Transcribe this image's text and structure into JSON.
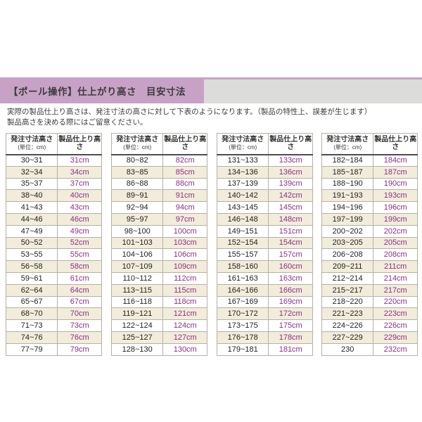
{
  "page": {
    "title": "【ポール操作】仕上がり高さ　目安寸法",
    "note_line1": "実際の製品仕上り高さは、発注寸法の高さに対して下表のようになります。（製品の特性上、誤差が生じます）",
    "note_line2": "製品高さを決める際にはご留意ください。"
  },
  "table_header": {
    "order_height_label": "発注寸法高さ",
    "order_height_unit": "(単位：cm)",
    "product_height_label": "製品仕上り高さ"
  },
  "colors": {
    "title_bar_pink": "#c8a2c6",
    "title_bar_gray": "#dcdcda",
    "row_alt_cream": "#f2ecda",
    "cell_border": "#b5b1a7",
    "value_purple": "#8c2f88"
  },
  "table_left_offsets": [
    8,
    158,
    308,
    457
  ],
  "tables": [
    {
      "rows": [
        [
          "30~31",
          "31cm"
        ],
        [
          "32~34",
          "34cm"
        ],
        [
          "35~37",
          "37cm"
        ],
        [
          "38~40",
          "40cm"
        ],
        [
          "41~43",
          "43cm"
        ],
        [
          "44~46",
          "46cm"
        ],
        [
          "47~49",
          "49cm"
        ],
        [
          "50~52",
          "52cm"
        ],
        [
          "53~55",
          "55cm"
        ],
        [
          "56~58",
          "58cm"
        ],
        [
          "59~61",
          "61cm"
        ],
        [
          "62~64",
          "64cm"
        ],
        [
          "65~67",
          "67cm"
        ],
        [
          "68~70",
          "70cm"
        ],
        [
          "71~73",
          "73cm"
        ],
        [
          "74~76",
          "76cm"
        ],
        [
          "77~79",
          "79cm"
        ]
      ]
    },
    {
      "rows": [
        [
          "80~82",
          "82cm"
        ],
        [
          "83~85",
          "85cm"
        ],
        [
          "86~88",
          "88cm"
        ],
        [
          "89~91",
          "91cm"
        ],
        [
          "92~94",
          "94cm"
        ],
        [
          "95~97",
          "97cm"
        ],
        [
          "98~100",
          "100cm"
        ],
        [
          "101~103",
          "103cm"
        ],
        [
          "104~106",
          "106cm"
        ],
        [
          "107~109",
          "109cm"
        ],
        [
          "110~112",
          "112cm"
        ],
        [
          "113~115",
          "115cm"
        ],
        [
          "116~118",
          "118cm"
        ],
        [
          "119~121",
          "121cm"
        ],
        [
          "122~124",
          "124cm"
        ],
        [
          "125~127",
          "127cm"
        ],
        [
          "128~130",
          "130cm"
        ]
      ]
    },
    {
      "rows": [
        [
          "131~133",
          "133cm"
        ],
        [
          "134~136",
          "136cm"
        ],
        [
          "137~139",
          "139cm"
        ],
        [
          "140~142",
          "142cm"
        ],
        [
          "143~145",
          "145cm"
        ],
        [
          "146~148",
          "148cm"
        ],
        [
          "149~151",
          "151cm"
        ],
        [
          "152~154",
          "154cm"
        ],
        [
          "155~157",
          "157cm"
        ],
        [
          "158~160",
          "160cm"
        ],
        [
          "161~163",
          "163cm"
        ],
        [
          "164~166",
          "166cm"
        ],
        [
          "167~169",
          "169cm"
        ],
        [
          "170~172",
          "172cm"
        ],
        [
          "173~175",
          "175cm"
        ],
        [
          "176~178",
          "178cm"
        ],
        [
          "179~181",
          "181cm"
        ]
      ]
    },
    {
      "rows": [
        [
          "182~184",
          "184cm"
        ],
        [
          "185~187",
          "187cm"
        ],
        [
          "188~190",
          "190cm"
        ],
        [
          "191~193",
          "193cm"
        ],
        [
          "194~196",
          "196cm"
        ],
        [
          "197~199",
          "199cm"
        ],
        [
          "200~202",
          "202cm"
        ],
        [
          "203~205",
          "205cm"
        ],
        [
          "206~208",
          "208cm"
        ],
        [
          "209~211",
          "211cm"
        ],
        [
          "212~214",
          "214cm"
        ],
        [
          "215~217",
          "217cm"
        ],
        [
          "218~220",
          "220cm"
        ],
        [
          "221~223",
          "223cm"
        ],
        [
          "224~226",
          "226cm"
        ],
        [
          "227~229",
          "229cm"
        ],
        [
          "230",
          "232cm"
        ]
      ]
    }
  ]
}
